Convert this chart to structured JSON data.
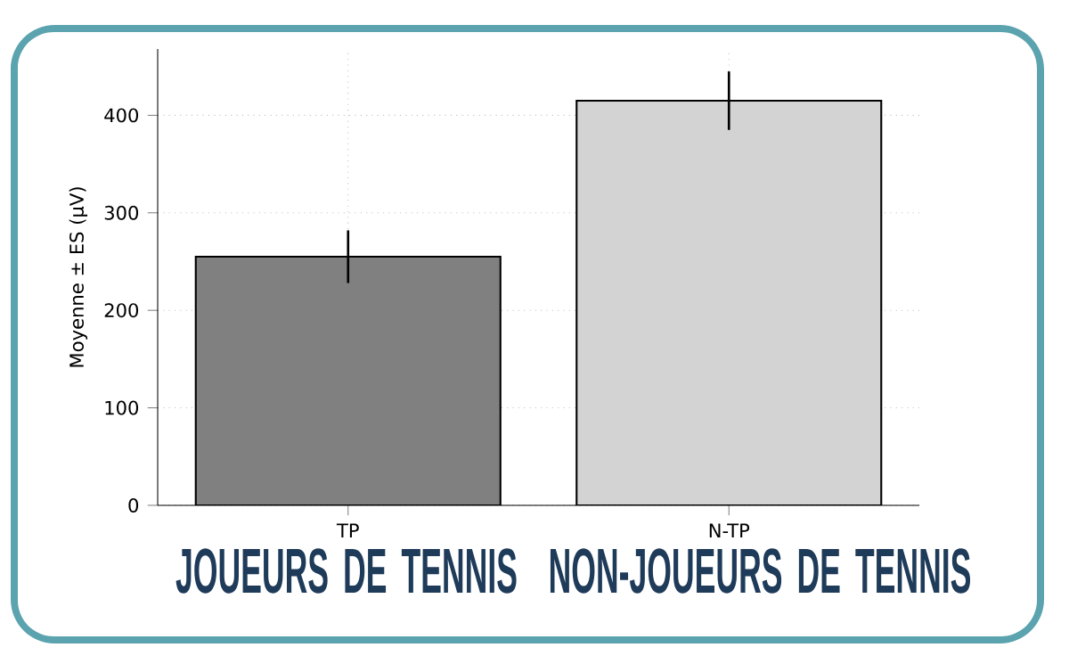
{
  "chart_data": {
    "type": "bar",
    "ylabel": "Moyenne ± ES (µV)",
    "categories": [
      "TP",
      "N-TP"
    ],
    "values": [
      255,
      415
    ],
    "errors": [
      27,
      30
    ],
    "colors": [
      "#808080",
      "#d3d3d3"
    ],
    "ylim": [
      0,
      468
    ],
    "yticks": [
      0,
      100,
      200,
      300,
      400
    ],
    "grid": true,
    "annotations": [
      "JOUEURS DE TENNIS",
      "NON-JOUEURS DE TENNIS"
    ]
  }
}
